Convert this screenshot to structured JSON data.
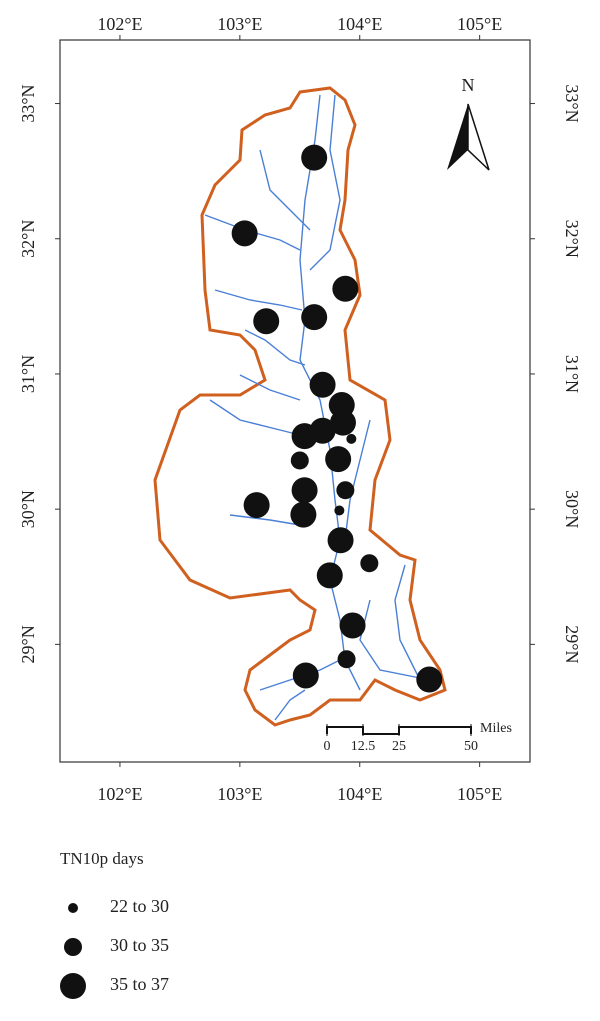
{
  "map": {
    "xlim": [
      101.5,
      105.42
    ],
    "ylim": [
      28.13,
      33.47
    ],
    "xticks": [
      {
        "value": 102,
        "label": "102°E"
      },
      {
        "value": 103,
        "label": "103°E"
      },
      {
        "value": 104,
        "label": "104°E"
      },
      {
        "value": 105,
        "label": "105°E"
      }
    ],
    "yticks": [
      {
        "value": 29,
        "label": "29°N"
      },
      {
        "value": 30,
        "label": "30°N"
      },
      {
        "value": 31,
        "label": "31°N"
      },
      {
        "value": 32,
        "label": "32°N"
      },
      {
        "value": 33,
        "label": "33°N"
      }
    ],
    "north": "N",
    "scale": {
      "unit": "Miles",
      "ticks": [
        0,
        12.5,
        25,
        50
      ]
    },
    "legend": {
      "title": "TN10p days",
      "items": [
        "22 to 30",
        "30 to 35",
        "35 to 37"
      ]
    },
    "stations": [
      {
        "lon": 103.62,
        "lat": 32.6,
        "class": 2
      },
      {
        "lon": 103.04,
        "lat": 32.04,
        "class": 2
      },
      {
        "lon": 103.88,
        "lat": 31.63,
        "class": 2
      },
      {
        "lon": 103.22,
        "lat": 31.39,
        "class": 2
      },
      {
        "lon": 103.62,
        "lat": 31.42,
        "class": 2
      },
      {
        "lon": 103.69,
        "lat": 30.92,
        "class": 2
      },
      {
        "lon": 103.85,
        "lat": 30.77,
        "class": 2
      },
      {
        "lon": 103.86,
        "lat": 30.64,
        "class": 2
      },
      {
        "lon": 103.69,
        "lat": 30.58,
        "class": 2
      },
      {
        "lon": 103.54,
        "lat": 30.54,
        "class": 2
      },
      {
        "lon": 103.93,
        "lat": 30.52,
        "class": 0
      },
      {
        "lon": 103.82,
        "lat": 30.37,
        "class": 2
      },
      {
        "lon": 103.5,
        "lat": 30.36,
        "class": 1
      },
      {
        "lon": 103.88,
        "lat": 30.14,
        "class": 1
      },
      {
        "lon": 103.54,
        "lat": 30.14,
        "class": 2
      },
      {
        "lon": 103.14,
        "lat": 30.03,
        "class": 2
      },
      {
        "lon": 103.53,
        "lat": 29.96,
        "class": 2
      },
      {
        "lon": 103.83,
        "lat": 29.99,
        "class": 0
      },
      {
        "lon": 103.84,
        "lat": 29.77,
        "class": 2
      },
      {
        "lon": 104.08,
        "lat": 29.6,
        "class": 1
      },
      {
        "lon": 103.75,
        "lat": 29.51,
        "class": 2
      },
      {
        "lon": 103.94,
        "lat": 29.14,
        "class": 2
      },
      {
        "lon": 103.89,
        "lat": 28.89,
        "class": 1
      },
      {
        "lon": 103.55,
        "lat": 28.77,
        "class": 2
      },
      {
        "lon": 104.58,
        "lat": 28.74,
        "class": 2
      }
    ]
  }
}
